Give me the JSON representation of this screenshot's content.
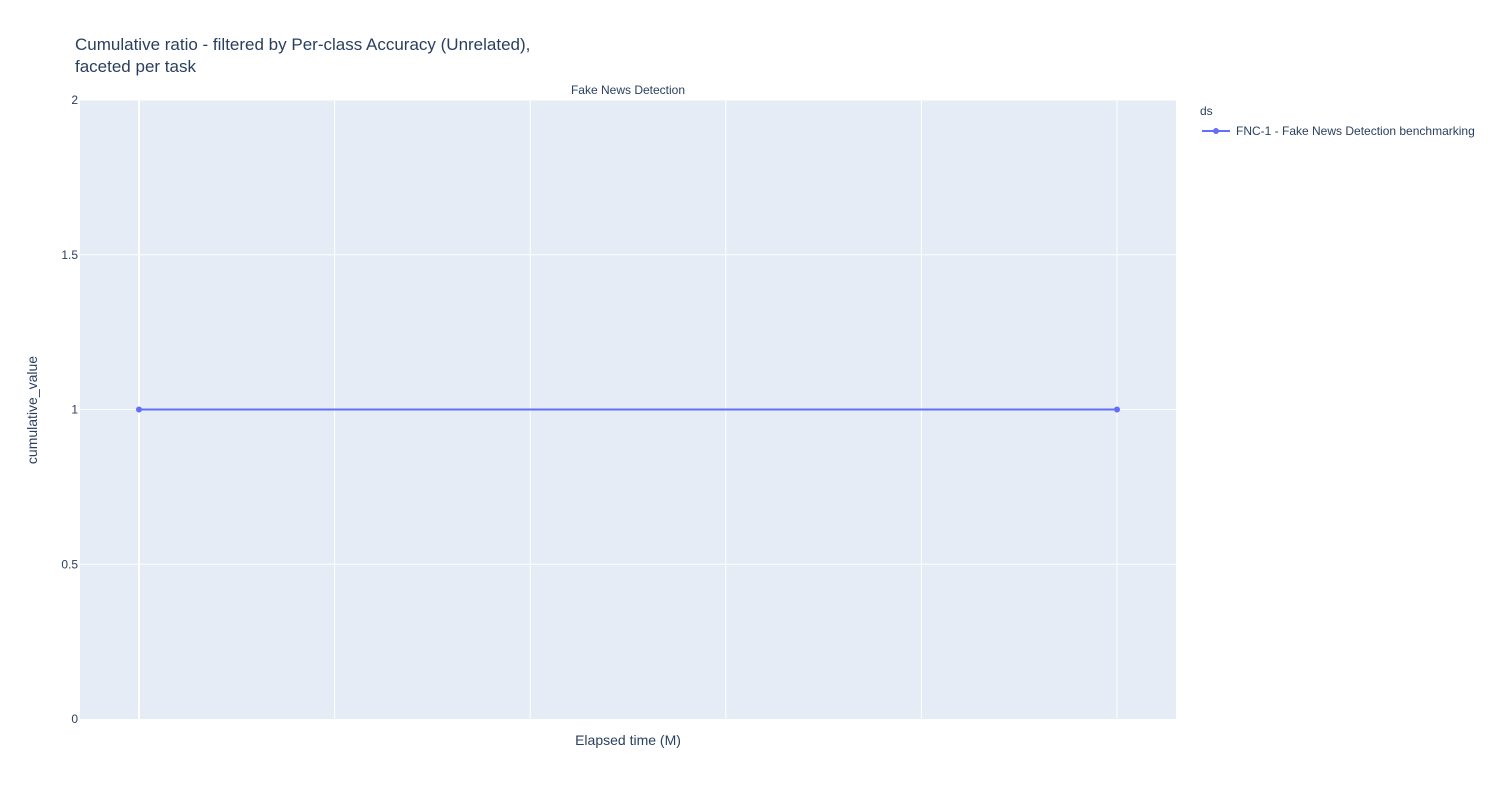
{
  "chart_data": {
    "type": "line",
    "title_lines": [
      "Cumulative ratio - filtered by Per-class Accuracy (Unrelated),",
      "faceted per task"
    ],
    "facet_title": "Fake News Detection",
    "xlabel": "Elapsed time (M)",
    "ylabel": "cumulative_value",
    "ylim": [
      0,
      2
    ],
    "yticks": [
      0,
      0.5,
      1,
      1.5,
      2
    ],
    "yticklabels": [
      "0",
      "0.5",
      "1",
      "1.5",
      "2"
    ],
    "x_tick_labels_shown": false,
    "grid": true,
    "legend_title": "ds",
    "legend_position": "top-right outside",
    "series": [
      {
        "name": "FNC-1 - Fake News Detection benchmarking",
        "color": "#636efa",
        "points": [
          {
            "x": 0,
            "y": 1
          },
          {
            "x": 1,
            "y": 1
          }
        ]
      }
    ]
  }
}
